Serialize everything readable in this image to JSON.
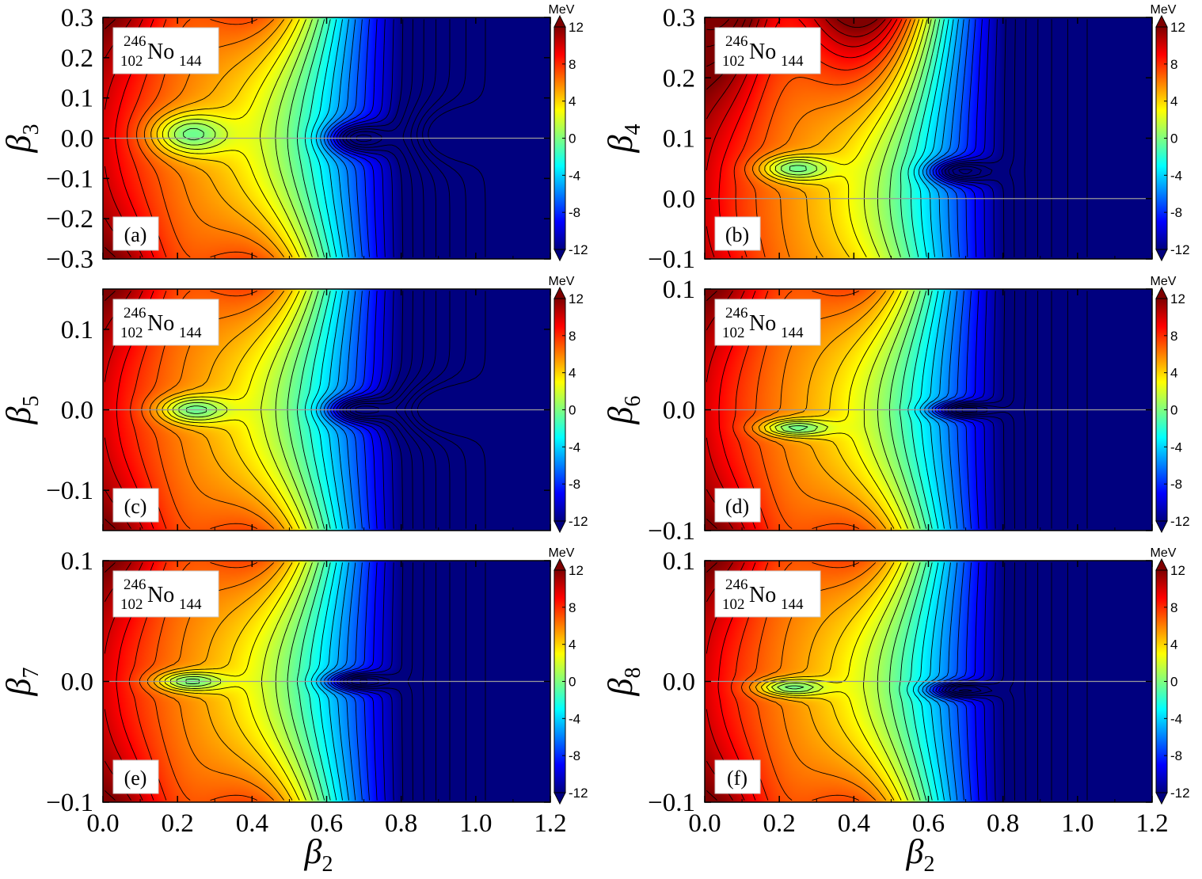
{
  "chart_data": [
    {
      "panel_label": "(a)",
      "type": "heatmap",
      "ylabel_base": "β",
      "ylabel_sub": "3",
      "x_ticks": [
        "0.0",
        "0.2",
        "0.4",
        "0.6",
        "0.8",
        "1.0",
        "1.2"
      ],
      "xlim": [
        0.0,
        1.2
      ],
      "y_ticks": [
        "−0.3",
        "−0.2",
        "−0.1",
        "0.0",
        "0.1",
        "0.2",
        "0.3"
      ],
      "y_tick_values": [
        -0.3,
        -0.2,
        -0.1,
        0.0,
        0.1,
        0.2,
        0.3
      ],
      "ylim": [
        -0.3,
        0.3
      ],
      "minima": [
        {
          "x": 0.23,
          "y": 0.01,
          "depth": -6.0,
          "sx": 0.1,
          "sy": 0.17
        },
        {
          "x": 0.68,
          "y": 0.0,
          "depth": -8.0,
          "sx": 0.08,
          "sy": 0.12
        },
        {
          "x": 0.92,
          "y": 0.01,
          "depth": -4.5,
          "sx": 0.1,
          "sy": 0.22
        }
      ]
    },
    {
      "panel_label": "(b)",
      "type": "heatmap",
      "ylabel_base": "β",
      "ylabel_sub": "4",
      "x_ticks": [
        "0.0",
        "0.2",
        "0.4",
        "0.6",
        "0.8",
        "1.0",
        "1.2"
      ],
      "xlim": [
        0.0,
        1.2
      ],
      "y_ticks": [
        "−0.1",
        "0.0",
        "0.1",
        "0.2",
        "0.3"
      ],
      "y_tick_values": [
        -0.1,
        0.0,
        0.1,
        0.2,
        0.3
      ],
      "ylim": [
        -0.1,
        0.3
      ],
      "minima": [
        {
          "x": 0.24,
          "y": 0.05,
          "depth": -6.0,
          "sx": 0.09,
          "sy": 0.1
        },
        {
          "x": 0.68,
          "y": 0.045,
          "depth": -8.0,
          "sx": 0.08,
          "sy": 0.09
        }
      ]
    },
    {
      "panel_label": "(c)",
      "type": "heatmap",
      "ylabel_base": "β",
      "ylabel_sub": "5",
      "x_ticks": [
        "0.0",
        "0.2",
        "0.4",
        "0.6",
        "0.8",
        "1.0",
        "1.2"
      ],
      "xlim": [
        0.0,
        1.2
      ],
      "y_ticks": [
        "−0.1",
        "0.0",
        "0.1"
      ],
      "y_tick_values": [
        -0.1,
        0.0,
        0.1
      ],
      "ylim": [
        -0.15,
        0.15
      ],
      "minima": [
        {
          "x": 0.24,
          "y": 0.0,
          "depth": -6.0,
          "sx": 0.09,
          "sy": 0.11
        },
        {
          "x": 0.68,
          "y": 0.0,
          "depth": -8.0,
          "sx": 0.08,
          "sy": 0.1
        },
        {
          "x": 0.9,
          "y": 0.0,
          "depth": -5.5,
          "sx": 0.12,
          "sy": 0.2
        }
      ]
    },
    {
      "panel_label": "(d)",
      "type": "heatmap",
      "ylabel_base": "β",
      "ylabel_sub": "6",
      "x_ticks": [
        "0.0",
        "0.2",
        "0.4",
        "0.6",
        "0.8",
        "1.0",
        "1.2"
      ],
      "xlim": [
        0.0,
        1.2
      ],
      "y_ticks": [
        "−0.1",
        "0.0",
        "0.1"
      ],
      "y_tick_values": [
        -0.1,
        0.0,
        0.1
      ],
      "ylim": [
        -0.1,
        0.1
      ],
      "minima": [
        {
          "x": 0.24,
          "y": -0.015,
          "depth": -6.0,
          "sx": 0.09,
          "sy": 0.07
        },
        {
          "x": 0.69,
          "y": 0.0,
          "depth": -8.0,
          "sx": 0.08,
          "sy": 0.06
        }
      ]
    },
    {
      "panel_label": "(e)",
      "type": "heatmap",
      "ylabel_base": "β",
      "ylabel_sub": "7",
      "x_ticks": [
        "0.0",
        "0.2",
        "0.4",
        "0.6",
        "0.8",
        "1.0",
        "1.2"
      ],
      "xlim": [
        0.0,
        1.2
      ],
      "y_ticks": [
        "−0.1",
        "0.0",
        "0.1"
      ],
      "y_tick_values": [
        -0.1,
        0.0,
        0.1
      ],
      "ylim": [
        -0.1,
        0.1
      ],
      "minima": [
        {
          "x": 0.23,
          "y": 0.0,
          "depth": -6.0,
          "sx": 0.09,
          "sy": 0.08
        },
        {
          "x": 0.68,
          "y": 0.0,
          "depth": -8.0,
          "sx": 0.08,
          "sy": 0.07
        }
      ]
    },
    {
      "panel_label": "(f)",
      "type": "heatmap",
      "ylabel_base": "β",
      "ylabel_sub": "8",
      "x_ticks": [
        "0.0",
        "0.2",
        "0.4",
        "0.6",
        "0.8",
        "1.0",
        "1.2"
      ],
      "xlim": [
        0.0,
        1.2
      ],
      "y_ticks": [
        "−0.1",
        "0.0",
        "0.1"
      ],
      "y_tick_values": [
        -0.1,
        0.0,
        0.1
      ],
      "ylim": [
        -0.1,
        0.1
      ],
      "minima": [
        {
          "x": 0.23,
          "y": -0.005,
          "depth": -6.0,
          "sx": 0.09,
          "sy": 0.07
        },
        {
          "x": 0.68,
          "y": -0.007,
          "depth": -8.0,
          "sx": 0.08,
          "sy": 0.06
        }
      ]
    }
  ],
  "shared": {
    "nucleus": {
      "mass": "246",
      "charge": "102",
      "symbol": "No",
      "neutrons": "144"
    },
    "colorbar": {
      "unit": "MeV",
      "ticks": [
        "12",
        "8",
        "4",
        "0",
        "-4",
        "-8",
        "-12"
      ],
      "tick_values": [
        12,
        8,
        4,
        0,
        -4,
        -8,
        -12
      ],
      "range": [
        -12,
        12
      ],
      "contour_step": 1
    },
    "xlabel_base": "β",
    "xlabel_sub": "2",
    "colormap": [
      "#00007f",
      "#0000ff",
      "#007fff",
      "#00ffff",
      "#7fff7f",
      "#ffff00",
      "#ff7f00",
      "#ff0000",
      "#7f0000"
    ]
  }
}
